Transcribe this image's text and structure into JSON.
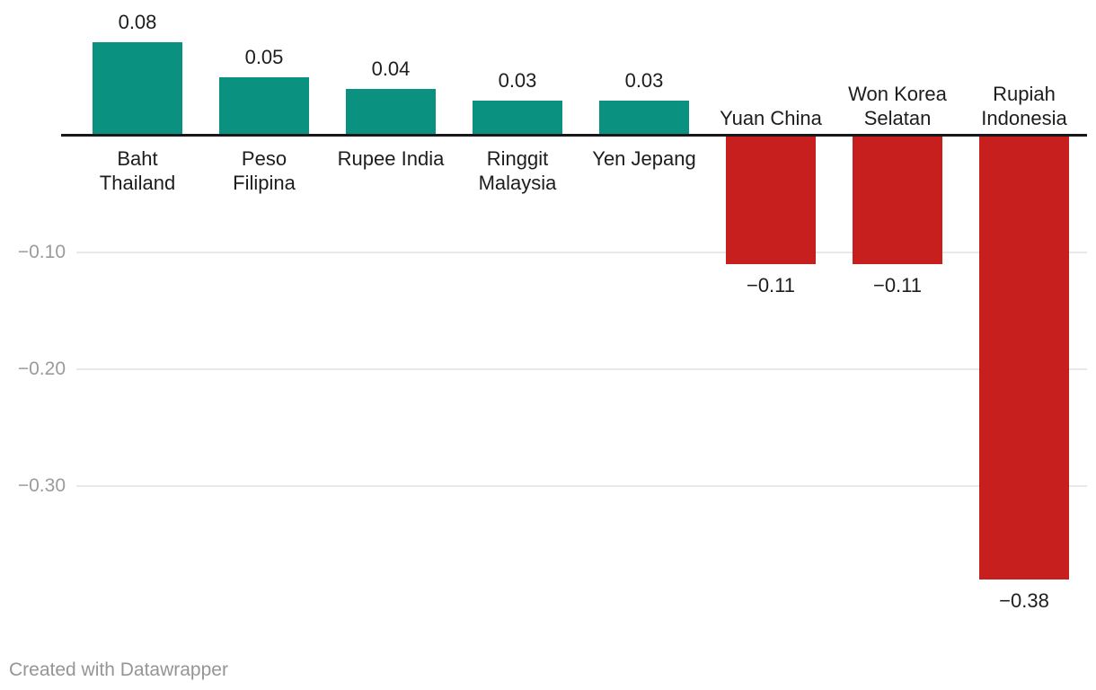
{
  "chart_data": {
    "type": "bar",
    "categories": [
      "Baht Thailand",
      "Peso Filipina",
      "Rupee India",
      "Ringgit Malaysia",
      "Yen Jepang",
      "Yuan China",
      "Won Korea Selatan",
      "Rupiah Indonesia"
    ],
    "category_label_lines": [
      [
        "Baht",
        "Thailand"
      ],
      [
        "Peso",
        "Filipina"
      ],
      [
        "Rupee India"
      ],
      [
        "Ringgit",
        "Malaysia"
      ],
      [
        "Yen Jepang"
      ],
      [
        "Yuan China"
      ],
      [
        "Won Korea",
        "Selatan"
      ],
      [
        "Rupiah",
        "Indonesia"
      ]
    ],
    "values": [
      0.08,
      0.05,
      0.04,
      0.03,
      0.03,
      -0.11,
      -0.11,
      -0.38
    ],
    "value_labels": [
      "0.08",
      "0.05",
      "0.04",
      "0.03",
      "0.03",
      "−0.11",
      "−0.11",
      "−0.38"
    ],
    "y_axis": {
      "range": [
        -0.4,
        0.1
      ],
      "grid": true,
      "ticks": [
        {
          "value": -0.1,
          "label": "−0.10"
        },
        {
          "value": -0.2,
          "label": "−0.20"
        },
        {
          "value": -0.3,
          "label": "−0.30"
        }
      ]
    },
    "xlabel": "",
    "ylabel": "",
    "legend": "none",
    "colors": {
      "positive": "#0b9180",
      "negative": "#c71f1d",
      "axis_line": "#18181a",
      "gridline": "#e8e8e8",
      "tick_label": "#9b9b9b",
      "bar_label": "#1d1d1d",
      "footer_text": "#959595"
    }
  },
  "footer": {
    "attribution": "Created with Datawrapper"
  }
}
